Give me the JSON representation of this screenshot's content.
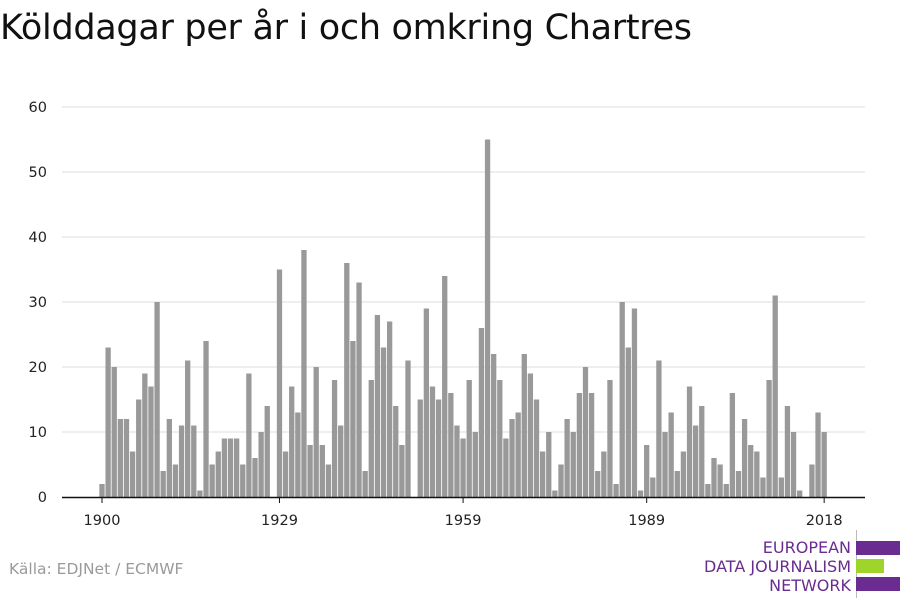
{
  "title": "Kölddagar per år i och omkring Chartres",
  "source": "Källa: EDJNet / ECMWF",
  "logo": {
    "lines": [
      "EUROPEAN",
      "DATA JOURNALISM",
      "NETWORK"
    ],
    "colors": {
      "text": "#6a2c91",
      "bar1": "#6a2c91",
      "bar2": "#9fd42a",
      "bar3": "#6a2c91"
    }
  },
  "chart_data": {
    "type": "bar",
    "title": "Kölddagar per år i och omkring Chartres",
    "xlabel": "",
    "ylabel": "",
    "ylim": [
      0,
      60
    ],
    "yticks": [
      0,
      10,
      20,
      30,
      40,
      50,
      60
    ],
    "xticks": [
      1900,
      1929,
      1959,
      1989,
      2018
    ],
    "grid": true,
    "bar_color": "#999999",
    "start_year": 1900,
    "years": [
      1900,
      1901,
      1902,
      1903,
      1904,
      1905,
      1906,
      1907,
      1908,
      1909,
      1910,
      1911,
      1912,
      1913,
      1914,
      1915,
      1916,
      1917,
      1918,
      1919,
      1920,
      1921,
      1922,
      1923,
      1924,
      1925,
      1926,
      1927,
      1928,
      1929,
      1930,
      1931,
      1932,
      1933,
      1934,
      1935,
      1936,
      1937,
      1938,
      1939,
      1940,
      1941,
      1942,
      1943,
      1944,
      1945,
      1946,
      1947,
      1948,
      1949,
      1950,
      1951,
      1952,
      1953,
      1954,
      1955,
      1956,
      1957,
      1958,
      1959,
      1960,
      1961,
      1962,
      1963,
      1964,
      1965,
      1966,
      1967,
      1968,
      1969,
      1970,
      1971,
      1972,
      1973,
      1974,
      1975,
      1976,
      1977,
      1978,
      1979,
      1980,
      1981,
      1982,
      1983,
      1984,
      1985,
      1986,
      1987,
      1988,
      1989,
      1990,
      1991,
      1992,
      1993,
      1994,
      1995,
      1996,
      1997,
      1998,
      1999,
      2000,
      2001,
      2002,
      2003,
      2004,
      2005,
      2006,
      2007,
      2008,
      2009,
      2010,
      2011,
      2012,
      2013,
      2014,
      2015,
      2016,
      2017,
      2018
    ],
    "values": [
      2,
      23,
      20,
      12,
      12,
      7,
      15,
      19,
      17,
      30,
      4,
      12,
      5,
      11,
      21,
      11,
      1,
      24,
      5,
      7,
      9,
      9,
      9,
      5,
      19,
      6,
      10,
      14,
      0,
      35,
      7,
      17,
      13,
      38,
      8,
      20,
      8,
      5,
      18,
      11,
      36,
      24,
      33,
      4,
      18,
      28,
      23,
      27,
      14,
      8,
      21,
      0,
      15,
      29,
      17,
      15,
      34,
      16,
      11,
      9,
      18,
      10,
      26,
      55,
      22,
      18,
      9,
      12,
      13,
      22,
      19,
      15,
      7,
      10,
      1,
      5,
      12,
      10,
      16,
      20,
      16,
      4,
      7,
      18,
      2,
      30,
      23,
      29,
      1,
      8,
      3,
      21,
      10,
      13,
      4,
      7,
      17,
      11,
      14,
      2,
      6,
      5,
      2,
      16,
      4,
      12,
      8,
      7,
      3,
      18,
      31,
      3,
      14,
      10,
      1,
      0,
      5,
      13,
      10
    ]
  }
}
